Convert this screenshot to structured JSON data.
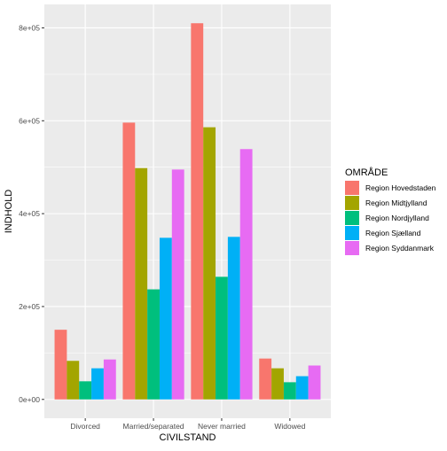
{
  "chart_data": {
    "type": "bar",
    "xlabel": "CIVILSTAND",
    "ylabel": "INDHOLD",
    "categories": [
      "Divorced",
      "Married/separated",
      "Never married",
      "Widowed"
    ],
    "series": [
      {
        "name": "Region Hovedstaden",
        "color": "#F8766D",
        "values": [
          150000,
          596000,
          810000,
          88000
        ]
      },
      {
        "name": "Region Midtjylland",
        "color": "#A3A500",
        "values": [
          83000,
          498000,
          586000,
          67000
        ]
      },
      {
        "name": "Region Nordjylland",
        "color": "#00BF7D",
        "values": [
          39000,
          237000,
          264000,
          37000
        ]
      },
      {
        "name": "Region Sjælland",
        "color": "#00B0F6",
        "values": [
          67000,
          348000,
          350000,
          50000
        ]
      },
      {
        "name": "Region Syddanmark",
        "color": "#E76BF3",
        "values": [
          86000,
          495000,
          539000,
          73000
        ]
      }
    ],
    "ylim": [
      -40500,
      850500
    ],
    "yticks": [
      0,
      200000,
      400000,
      600000,
      800000
    ],
    "ytick_labels": [
      "0e+00",
      "2e+05",
      "4e+05",
      "6e+05",
      "8e+05"
    ],
    "legend": {
      "title": "OMRÅDE",
      "position": "right"
    },
    "grid": true
  }
}
